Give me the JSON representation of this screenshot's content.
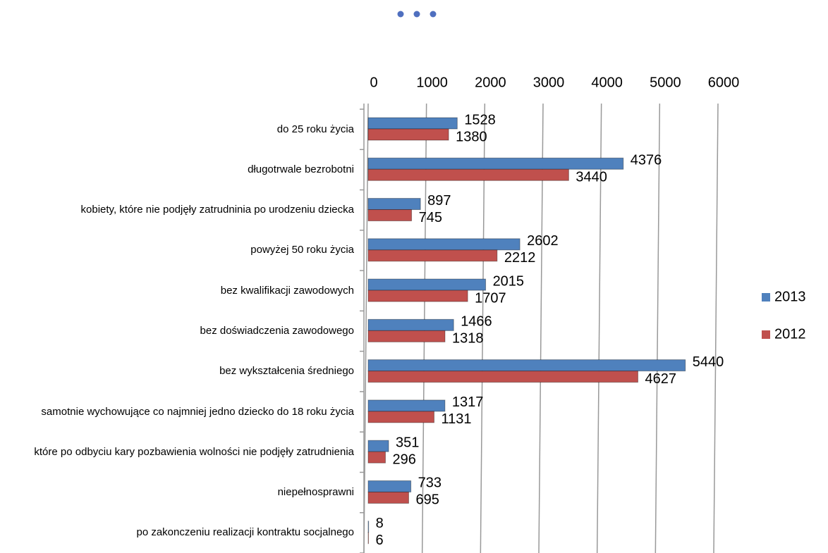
{
  "chart_data": {
    "type": "bar",
    "orientation": "horizontal",
    "categories": [
      "do 25 roku życia",
      "długotrwale bezrobotni",
      "kobiety, które nie podjęły zatrudninia po urodzeniu dziecka",
      "powyżej 50 roku życia",
      "bez kwalifikacji zawodowych",
      "bez doświadczenia zawodowego",
      "bez wykształcenia średniego",
      "samotnie wychowujące co najmniej jedno dziecko do 18 roku życia",
      "które po odbyciu kary pozbawienia wolności nie podjęły zatrudnienia",
      "niepełnosprawni",
      "po zakonczeniu realizacji kontraktu socjalnego"
    ],
    "series": [
      {
        "name": "2013",
        "color": "#4f81bd",
        "values": [
          1528,
          4376,
          897,
          2602,
          2015,
          1466,
          5440,
          1317,
          351,
          733,
          8
        ]
      },
      {
        "name": "2012",
        "color": "#c0504d",
        "values": [
          1380,
          3440,
          745,
          2212,
          1707,
          1318,
          4627,
          1131,
          296,
          695,
          6
        ]
      }
    ],
    "xlim": [
      0,
      6000
    ],
    "xticks": [
      0,
      1000,
      2000,
      3000,
      4000,
      5000,
      6000
    ],
    "grid": true,
    "legend": "right",
    "data_labels": true
  }
}
